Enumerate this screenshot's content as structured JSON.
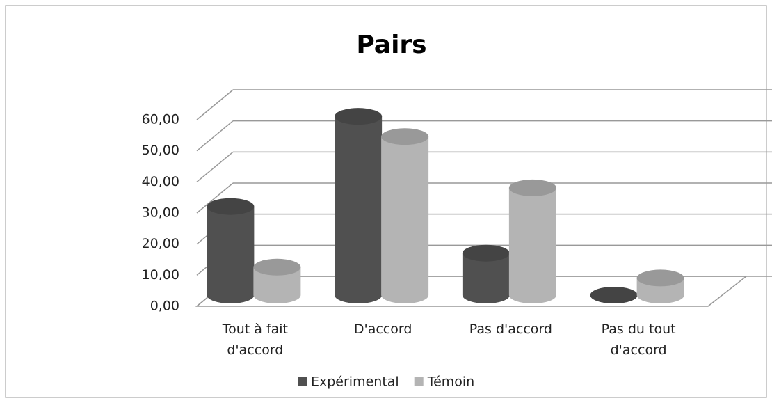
{
  "chart_data": {
    "type": "bar3d",
    "title": "Pairs",
    "categories": [
      "Tout à fait d'accord",
      "D'accord",
      "Pas d'accord",
      "Pas du tout d'accord"
    ],
    "series": [
      {
        "name": "Expérimental",
        "color": "#505050",
        "values": [
          28.5,
          57.5,
          13.5,
          0
        ]
      },
      {
        "name": "Témoin",
        "color": "#b4b4b4",
        "values": [
          9,
          51,
          34.5,
          5.5
        ]
      }
    ],
    "ylim": [
      0,
      60
    ],
    "yticks": [
      {
        "value": 0,
        "label": "0,00"
      },
      {
        "value": 10,
        "label": "10,00"
      },
      {
        "value": 20,
        "label": "20,00"
      },
      {
        "value": 30,
        "label": "30,00"
      },
      {
        "value": 40,
        "label": "40,00"
      },
      {
        "value": 50,
        "label": "50,00"
      },
      {
        "value": 60,
        "label": "60,00"
      }
    ],
    "grid": true,
    "legend": "bottom"
  }
}
